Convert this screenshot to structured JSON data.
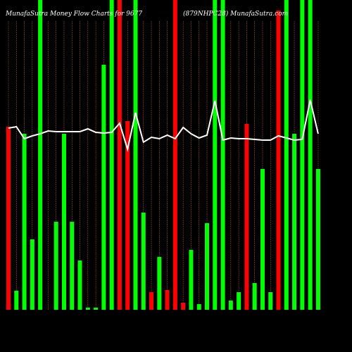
{
  "chart_data": {
    "type": "bar",
    "title": "MunafaSutra Money Flow Charts for 9677",
    "subtitle": "(879NHPC28) MunafaSutra.com",
    "values": [
      260,
      27,
      250,
      100,
      440,
      0,
      125,
      250,
      125,
      70,
      3,
      3,
      348,
      440,
      440,
      268,
      440,
      138,
      25,
      75,
      28,
      440,
      10,
      85,
      8,
      123,
      440,
      440,
      13,
      25,
      264,
      38,
      200,
      25,
      425,
      440,
      250,
      440,
      440,
      200
    ],
    "bar_colors": [
      "#ff0000",
      "#00ff00",
      "#00ff00",
      "#00ff00",
      "#00ff00",
      "#00ff00",
      "#00ff00",
      "#00ff00",
      "#00ff00",
      "#00ff00",
      "#00ff00",
      "#00ff00",
      "#00ff00",
      "#00ff00",
      "#ff0000",
      "#ff0000",
      "#00ff00",
      "#00ff00",
      "#ff0000",
      "#00ff00",
      "#ff0000",
      "#ff0000",
      "#ff0000",
      "#00ff00",
      "#00ff00",
      "#00ff00",
      "#00ff00",
      "#00ff00",
      "#00ff00",
      "#00ff00",
      "#ff0000",
      "#00ff00",
      "#00ff00",
      "#00ff00",
      "#ff0000",
      "#00ff00",
      "#00ff00",
      "#00ff00",
      "#00ff00",
      "#00ff00"
    ],
    "line_values": [
      258,
      260,
      243,
      247,
      250,
      254,
      253,
      253,
      253,
      253,
      257,
      252,
      251,
      252,
      265,
      228,
      280,
      238,
      245,
      243,
      248,
      243,
      259,
      250,
      244,
      248,
      297,
      241,
      244,
      243,
      243,
      242,
      241,
      241,
      247,
      244,
      241,
      242,
      298,
      250
    ],
    "line_color": "#ffffff",
    "ylim": [
      0,
      440
    ]
  }
}
